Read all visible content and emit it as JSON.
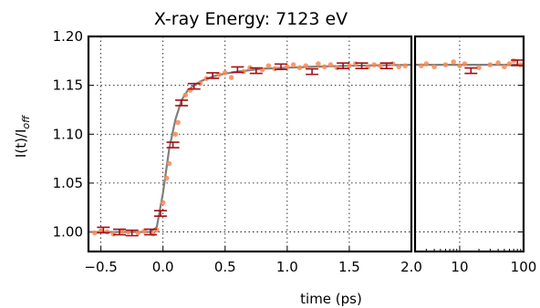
{
  "chart_data": {
    "type": "scatter",
    "title": "X-ray Energy: 7123 eV",
    "xlabel": "time (ps)",
    "ylabel": "I(t)/I",
    "ylabel_sub": "off",
    "ylim": [
      0.98,
      1.2
    ],
    "yticks": [
      "1.00",
      "1.05",
      "1.10",
      "1.15",
      "1.20"
    ],
    "grid": true,
    "colors": {
      "points": "#fa8a55",
      "errorbars": "#a50f15",
      "fit": "#7f7f7f"
    },
    "panels": [
      {
        "name": "linear",
        "xscale": "linear",
        "xlim": [
          -0.6,
          2.0
        ],
        "xticks": [
          "−0.5",
          "0.0",
          "0.5",
          "1.0",
          "1.5",
          "2.0"
        ]
      },
      {
        "name": "log",
        "xscale": "log",
        "xlim": [
          2.0,
          100
        ],
        "xticks": [
          "10",
          "100"
        ]
      }
    ],
    "fit": {
      "x": [
        -0.6,
        -0.4,
        -0.2,
        -0.1,
        -0.05,
        0.0,
        0.05,
        0.1,
        0.15,
        0.2,
        0.25,
        0.3,
        0.4,
        0.5,
        0.6,
        0.8,
        1.0,
        1.2,
        1.5,
        2.0
      ],
      "y": [
        1.0,
        1.0,
        1.0,
        1.0,
        1.005,
        1.04,
        1.085,
        1.115,
        1.135,
        1.145,
        1.15,
        1.154,
        1.159,
        1.162,
        1.164,
        1.167,
        1.168,
        1.169,
        1.17,
        1.171
      ],
      "log_y": 1.171
    },
    "errorbars": [
      {
        "x": -0.48,
        "y": 1.002
      },
      {
        "x": -0.35,
        "y": 1.0
      },
      {
        "x": -0.25,
        "y": 0.999
      },
      {
        "x": -0.1,
        "y": 1.0
      },
      {
        "x": -0.02,
        "y": 1.019
      },
      {
        "x": 0.08,
        "y": 1.089
      },
      {
        "x": 0.15,
        "y": 1.132
      },
      {
        "x": 0.25,
        "y": 1.149
      },
      {
        "x": 0.4,
        "y": 1.16
      },
      {
        "x": 0.6,
        "y": 1.166
      },
      {
        "x": 0.75,
        "y": 1.165
      },
      {
        "x": 0.95,
        "y": 1.169
      },
      {
        "x": 1.2,
        "y": 1.164
      },
      {
        "x": 1.45,
        "y": 1.17
      },
      {
        "x": 1.6,
        "y": 1.17
      },
      {
        "x": 1.8,
        "y": 1.17
      }
    ],
    "errorbars_log": [
      {
        "x": 15,
        "y": 1.165
      },
      {
        "x": 80,
        "y": 1.173
      }
    ],
    "points": [
      {
        "x": -0.55,
        "y": 0.999
      },
      {
        "x": -0.5,
        "y": 1.001
      },
      {
        "x": -0.45,
        "y": 1.0
      },
      {
        "x": -0.4,
        "y": 0.998
      },
      {
        "x": -0.33,
        "y": 1.001
      },
      {
        "x": -0.28,
        "y": 1.0
      },
      {
        "x": -0.2,
        "y": 0.999
      },
      {
        "x": -0.15,
        "y": 1.001
      },
      {
        "x": -0.08,
        "y": 0.998
      },
      {
        "x": -0.05,
        "y": 1.002
      },
      {
        "x": 0.0,
        "y": 1.03
      },
      {
        "x": 0.03,
        "y": 1.055
      },
      {
        "x": 0.05,
        "y": 1.07
      },
      {
        "x": 0.1,
        "y": 1.1
      },
      {
        "x": 0.12,
        "y": 1.112
      },
      {
        "x": 0.18,
        "y": 1.14
      },
      {
        "x": 0.22,
        "y": 1.145
      },
      {
        "x": 0.3,
        "y": 1.152
      },
      {
        "x": 0.35,
        "y": 1.157
      },
      {
        "x": 0.45,
        "y": 1.161
      },
      {
        "x": 0.5,
        "y": 1.163
      },
      {
        "x": 0.55,
        "y": 1.158
      },
      {
        "x": 0.65,
        "y": 1.164
      },
      {
        "x": 0.7,
        "y": 1.168
      },
      {
        "x": 0.8,
        "y": 1.166
      },
      {
        "x": 0.85,
        "y": 1.17
      },
      {
        "x": 0.9,
        "y": 1.167
      },
      {
        "x": 1.0,
        "y": 1.169
      },
      {
        "x": 1.05,
        "y": 1.171
      },
      {
        "x": 1.1,
        "y": 1.168
      },
      {
        "x": 1.15,
        "y": 1.17
      },
      {
        "x": 1.25,
        "y": 1.172
      },
      {
        "x": 1.3,
        "y": 1.169
      },
      {
        "x": 1.35,
        "y": 1.171
      },
      {
        "x": 1.4,
        "y": 1.168
      },
      {
        "x": 1.5,
        "y": 1.17
      },
      {
        "x": 1.55,
        "y": 1.172
      },
      {
        "x": 1.65,
        "y": 1.169
      },
      {
        "x": 1.7,
        "y": 1.171
      },
      {
        "x": 1.75,
        "y": 1.17
      },
      {
        "x": 1.85,
        "y": 1.172
      },
      {
        "x": 1.9,
        "y": 1.169
      },
      {
        "x": 1.95,
        "y": 1.17
      }
    ],
    "points_log": [
      {
        "x": 2.5,
        "y": 1.17
      },
      {
        "x": 3,
        "y": 1.172
      },
      {
        "x": 4,
        "y": 1.169
      },
      {
        "x": 6,
        "y": 1.171
      },
      {
        "x": 8,
        "y": 1.174
      },
      {
        "x": 10,
        "y": 1.17
      },
      {
        "x": 12,
        "y": 1.172
      },
      {
        "x": 20,
        "y": 1.168
      },
      {
        "x": 30,
        "y": 1.171
      },
      {
        "x": 40,
        "y": 1.173
      },
      {
        "x": 50,
        "y": 1.169
      },
      {
        "x": 60,
        "y": 1.172
      },
      {
        "x": 70,
        "y": 1.175
      },
      {
        "x": 90,
        "y": 1.171
      }
    ]
  }
}
